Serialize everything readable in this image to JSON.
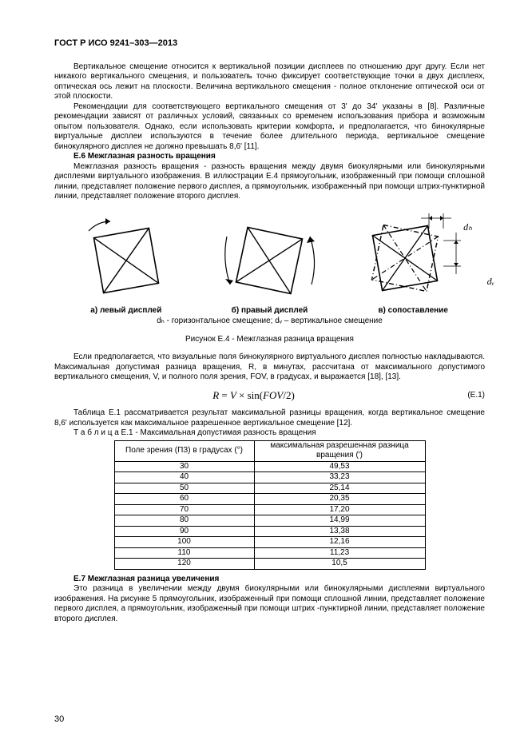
{
  "header": "ГОСТ Р ИСО 9241–303—2013",
  "para1": "Вертикальное смещение относится к вертикальной позиции дисплеев по отношению друг другу. Если нет никакого вертикального смещения, и пользователь точно фиксирует соответствующие точки в двух дисплеях, оптическая ось лежит на плоскости. Величина вертикального смещения - полное отклонение оптической оси от этой плоскости.",
  "para2": "Рекомендации для соответствующего вертикального смещения от 3' до 34' указаны в [8]. Различные рекомендации зависят от различных условий, связанных со временем использования прибора и возможным опытом пользователя. Однако, если использовать критерии комфорта, и предполагается, что бинокулярные виртуальные дисплеи используются в течение более длительного периода, вертикальное смещение бинокулярного дисплея не должно превышать 8,6' [11].",
  "sec_e6_title": "Е.6 Межглазная разность вращения",
  "sec_e6_body": "Межглазная разность вращения - разность вращения между двумя биокулярными или бинокулярными дисплеями виртуального изображения. В иллюстрации Е.4 прямоугольник, изображенный при помощи сплошной линии, представляет положение первого дисплея, а прямоугольник, изображенный при помощи штрих-пунктирной линии, представляет положение второго дисплея.",
  "fig": {
    "cap_a": "а) левый дисплей",
    "cap_b": "б) правый дисплей",
    "cap_c": "в) сопоставление",
    "sub": "dₕ - горизонтальное смещение; dᵥ – вертикальное смещение",
    "title": "Рисунок Е.4 - Межглазная разница вращения"
  },
  "para3": "Если предполагается, что визуальные поля бинокулярного виртуального дисплея полностью накладываются. Максимальная допустимая разница вращения, R, в минутах, рассчитана от максимального допустимого вертикального смещения, V, и полного поля зрения, FOV, в градусах, и выражается [18], [13].",
  "equation": "R = V × sin(FOV/2)",
  "eq_num": "(Е.1)",
  "para4": "Таблица Е.1 рассматривается результат максимальной разницы вращения, когда вертикальное смещение 8,6' используется как максимальное разрешенное вертикальное смещение [12].",
  "table_caption": "Т а б л и ц а  Е.1 - Максимальная допустимая разность вращения",
  "table": {
    "col1": "Поле зрения (ПЗ) в градусах (°)",
    "col2": "максимальная разрешенная разница вращения (')",
    "rows": [
      [
        "30",
        "49,53"
      ],
      [
        "40",
        "33,23"
      ],
      [
        "50",
        "25,14"
      ],
      [
        "60",
        "20,35"
      ],
      [
        "70",
        "17,20"
      ],
      [
        "80",
        "14,99"
      ],
      [
        "90",
        "13,38"
      ],
      [
        "100",
        "12,16"
      ],
      [
        "110",
        "11,23"
      ],
      [
        "120",
        "10,5"
      ]
    ]
  },
  "sec_e7_title": "Е.7 Межглазная разница увеличения",
  "sec_e7_body": "Это разница в увеличении между двумя биокулярными или бинокулярными дисплеями виртуального изображения. На рисунке 5 прямоугольник, изображенный при помощи сплошной линии, представляет положение первого дисплея, а прямоугольник, изображенный при помощи штрих -пунктирной линии, представляет положение второго дисплея.",
  "page_number": "30",
  "dh": "dₕ",
  "dv": "dᵥ"
}
